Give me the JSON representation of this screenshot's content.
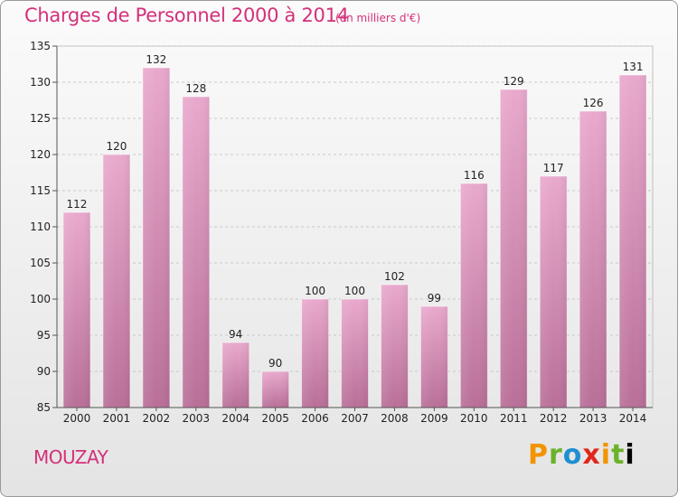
{
  "chart_data": {
    "type": "bar",
    "title": "Charges de Personnel 2000 à 2014",
    "subtitle": "(en milliers d'€)",
    "categories": [
      "2000",
      "2001",
      "2002",
      "2003",
      "2004",
      "2005",
      "2006",
      "2007",
      "2008",
      "2009",
      "2010",
      "2011",
      "2012",
      "2013",
      "2014"
    ],
    "values": [
      112,
      120,
      132,
      128,
      94,
      90,
      100,
      100,
      102,
      99,
      116,
      129,
      117,
      126,
      131
    ],
    "yticks": [
      85,
      90,
      95,
      100,
      105,
      110,
      115,
      120,
      125,
      130,
      135
    ],
    "ylim": [
      85,
      135
    ],
    "xlabel": "",
    "ylabel": "",
    "grid": true,
    "bar_color": "#d98bb6"
  },
  "footer": {
    "place": "MOUZAY",
    "logo_letters": [
      "P",
      "r",
      "o",
      "x",
      "i",
      "t",
      "i"
    ]
  }
}
